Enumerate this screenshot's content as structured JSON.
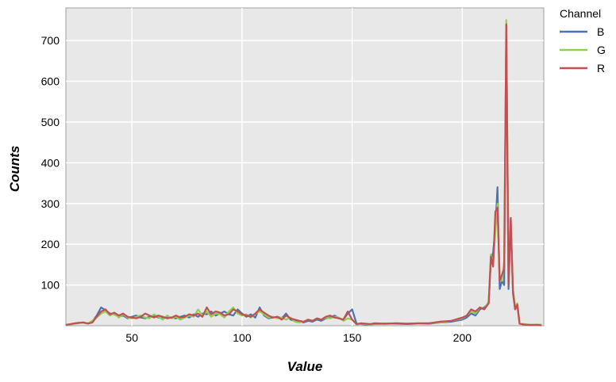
{
  "chart_data": {
    "type": "line",
    "xlabel": "Value",
    "ylabel": "Counts",
    "xlim": [
      20,
      237
    ],
    "ylim": [
      0,
      780
    ],
    "x_ticks": [
      50,
      100,
      150,
      200
    ],
    "y_ticks": [
      100,
      200,
      300,
      400,
      500,
      600,
      700
    ],
    "grid": true,
    "background": "#E8E8E8",
    "legend": {
      "title": "Channel",
      "placement": "top-right outside"
    },
    "x": [
      20,
      22,
      24,
      26,
      28,
      30,
      32,
      34,
      36,
      38,
      40,
      42,
      44,
      46,
      48,
      50,
      52,
      54,
      56,
      58,
      60,
      62,
      64,
      66,
      68,
      70,
      72,
      74,
      76,
      78,
      80,
      82,
      84,
      86,
      88,
      90,
      92,
      94,
      96,
      98,
      100,
      102,
      104,
      106,
      108,
      110,
      112,
      114,
      116,
      118,
      120,
      122,
      124,
      126,
      128,
      130,
      132,
      134,
      136,
      138,
      140,
      142,
      144,
      146,
      148,
      150,
      152,
      154,
      156,
      158,
      160,
      165,
      170,
      175,
      180,
      185,
      190,
      195,
      200,
      202,
      204,
      206,
      208,
      210,
      212,
      213,
      214,
      215,
      216,
      217,
      218,
      219,
      220,
      221,
      222,
      223,
      224,
      225,
      226,
      228,
      230,
      232,
      234,
      236
    ],
    "series": [
      {
        "name": "B",
        "color": "#4C72B0",
        "values": [
          2,
          3,
          5,
          7,
          8,
          6,
          10,
          25,
          45,
          38,
          30,
          28,
          22,
          25,
          18,
          22,
          25,
          20,
          18,
          22,
          25,
          20,
          18,
          22,
          20,
          18,
          22,
          25,
          20,
          28,
          22,
          30,
          28,
          35,
          25,
          30,
          35,
          28,
          25,
          40,
          30,
          22,
          28,
          20,
          45,
          25,
          18,
          20,
          22,
          18,
          30,
          15,
          12,
          10,
          8,
          12,
          10,
          15,
          12,
          18,
          20,
          25,
          18,
          15,
          30,
          40,
          5,
          4,
          3,
          3,
          4,
          5,
          5,
          4,
          5,
          5,
          8,
          10,
          15,
          20,
          30,
          25,
          40,
          45,
          55,
          160,
          180,
          240,
          340,
          90,
          110,
          100,
          740,
          90,
          260,
          80,
          40,
          50,
          5,
          3,
          2,
          2,
          3,
          2
        ]
      },
      {
        "name": "G",
        "color": "#8FD14F",
        "values": [
          2,
          3,
          5,
          8,
          7,
          6,
          12,
          20,
          30,
          35,
          25,
          30,
          20,
          28,
          20,
          18,
          22,
          25,
          20,
          18,
          28,
          22,
          15,
          25,
          18,
          22,
          15,
          20,
          25,
          22,
          40,
          25,
          35,
          22,
          30,
          28,
          20,
          35,
          45,
          30,
          25,
          28,
          20,
          30,
          35,
          28,
          20,
          22,
          18,
          20,
          15,
          20,
          10,
          8,
          10,
          15,
          12,
          18,
          15,
          20,
          18,
          22,
          20,
          12,
          18,
          15,
          3,
          5,
          4,
          3,
          5,
          4,
          6,
          5,
          5,
          6,
          8,
          12,
          18,
          25,
          35,
          30,
          45,
          40,
          60,
          175,
          150,
          230,
          300,
          120,
          110,
          160,
          750,
          140,
          250,
          90,
          45,
          55,
          6,
          4,
          3,
          2,
          3,
          2
        ]
      },
      {
        "name": "R",
        "color": "#C44E52",
        "values": [
          2,
          4,
          6,
          7,
          8,
          5,
          8,
          22,
          35,
          40,
          28,
          32,
          25,
          30,
          22,
          20,
          18,
          22,
          30,
          25,
          20,
          25,
          22,
          18,
          20,
          25,
          20,
          22,
          28,
          25,
          30,
          22,
          45,
          28,
          35,
          32,
          25,
          28,
          40,
          35,
          28,
          25,
          22,
          30,
          40,
          32,
          25,
          20,
          22,
          15,
          25,
          18,
          15,
          12,
          10,
          15,
          12,
          18,
          15,
          22,
          25,
          20,
          18,
          15,
          35,
          15,
          4,
          6,
          5,
          4,
          6,
          5,
          6,
          5,
          6,
          6,
          10,
          12,
          20,
          25,
          40,
          35,
          45,
          40,
          55,
          170,
          145,
          280,
          290,
          110,
          125,
          140,
          740,
          100,
          265,
          85,
          40,
          52,
          5,
          3,
          2,
          2,
          2,
          1
        ]
      }
    ]
  }
}
